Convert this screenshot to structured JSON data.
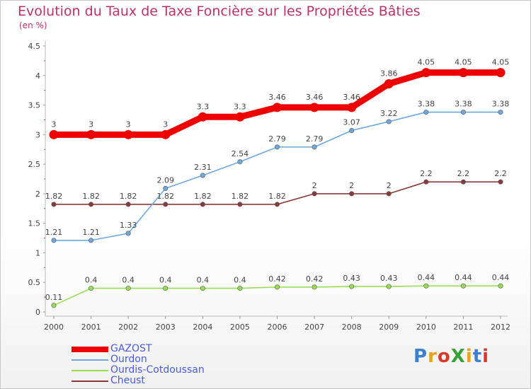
{
  "title": "Evolution du Taux de Taxe Foncière sur les Propriétés Bâties",
  "subtitle": "(en %)",
  "logo": {
    "text": "ProXiti",
    "colors": [
      "#3a7fd0",
      "#e8a020",
      "#d83a2a",
      "#3aa03a",
      "#e8a020",
      "#3a7fd0",
      "#d83a2a"
    ]
  },
  "chart_data": {
    "type": "line",
    "x": [
      "2000",
      "2001",
      "2002",
      "2003",
      "2004",
      "2005",
      "2006",
      "2007",
      "2008",
      "2009",
      "2010",
      "2011",
      "2012"
    ],
    "ylim": [
      0,
      4.5
    ],
    "yticks": [
      "0",
      "0.5",
      "1",
      "1.5",
      "2",
      "2.5",
      "3",
      "3.5",
      "4",
      "4.5"
    ],
    "grid": false,
    "legend_position": "bottom-left",
    "series": [
      {
        "name": "GAZOST",
        "color": "#ee0000",
        "values": [
          3,
          3,
          3,
          3,
          3.3,
          3.3,
          3.46,
          3.46,
          3.46,
          3.86,
          4.05,
          4.05,
          4.05
        ],
        "labels": [
          "3",
          "3",
          "3",
          "3",
          "3.3",
          "3.3",
          "3.46",
          "3.46",
          "3.46",
          "3.86",
          "4.05",
          "4.05",
          "4.05"
        ]
      },
      {
        "name": "Ourdon",
        "color": "#6fa8dc",
        "values": [
          1.21,
          1.21,
          1.33,
          2.09,
          2.31,
          2.54,
          2.79,
          2.79,
          3.07,
          3.22,
          3.38,
          3.38,
          3.38
        ],
        "labels": [
          "1.21",
          "1.21",
          "1.33",
          "2.09",
          "2.31",
          "2.54",
          "2.79",
          "2.79",
          "3.07",
          "3.22",
          "3.38",
          "3.38",
          "3.38"
        ]
      },
      {
        "name": "Ourdis-Cotdoussan",
        "color": "#99dd55",
        "values": [
          0.11,
          0.4,
          0.4,
          0.4,
          0.4,
          0.4,
          0.42,
          0.42,
          0.43,
          0.43,
          0.44,
          0.44,
          0.44
        ],
        "labels": [
          "0.11",
          "0.4",
          "0.4",
          "0.4",
          "0.4",
          "0.4",
          "0.42",
          "0.42",
          "0.43",
          "0.43",
          "0.44",
          "0.44",
          "0.44"
        ]
      },
      {
        "name": "Cheust",
        "color": "#8a3a3a",
        "values": [
          1.82,
          1.82,
          1.82,
          1.82,
          1.82,
          1.82,
          1.82,
          2,
          2,
          2,
          2.2,
          2.2,
          2.2
        ],
        "labels": [
          "1.82",
          "1.82",
          "1.82",
          "1.82",
          "1.82",
          "1.82",
          "1.82",
          "2",
          "2",
          "2",
          "2.2",
          "2.2",
          "2.2"
        ]
      }
    ]
  }
}
